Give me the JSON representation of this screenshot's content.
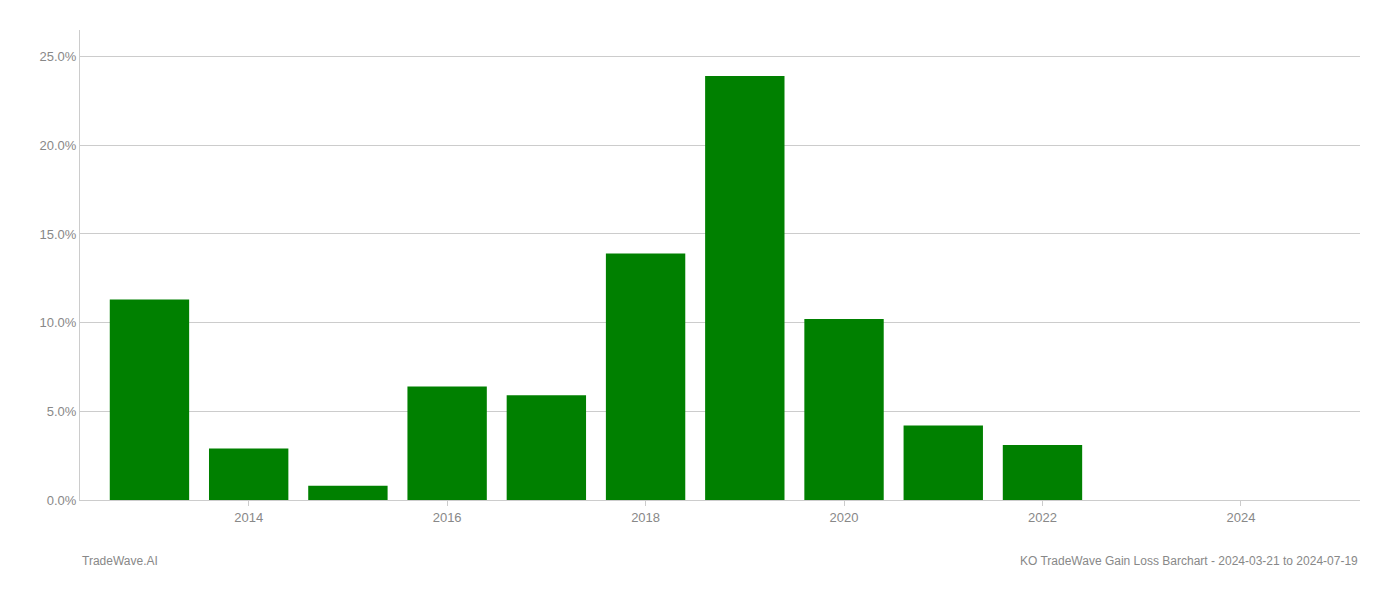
{
  "chart_data": {
    "type": "bar",
    "x": [
      2013,
      2014,
      2015,
      2016,
      2017,
      2018,
      2019,
      2020,
      2021,
      2022,
      2023
    ],
    "values": [
      0.113,
      0.029,
      0.008,
      0.064,
      0.059,
      0.139,
      0.239,
      0.102,
      0.042,
      0.031,
      0.0
    ],
    "color": "#008000",
    "xlim": [
      2012.3,
      2025.2
    ],
    "xticks": [
      2014,
      2016,
      2018,
      2020,
      2022,
      2024
    ],
    "ylim": [
      0.0,
      0.265
    ],
    "yticks": [
      {
        "value": 0.0,
        "label": "0.0%"
      },
      {
        "value": 0.05,
        "label": "5.0%"
      },
      {
        "value": 0.1,
        "label": "10.0%"
      },
      {
        "value": 0.15,
        "label": "15.0%"
      },
      {
        "value": 0.2,
        "label": "20.0%"
      },
      {
        "value": 0.25,
        "label": "25.0%"
      }
    ],
    "grid": true,
    "annotations": [
      "TradeWave.AI",
      "KO TradeWave Gain Loss Barchart - 2024-03-21 to 2024-07-19"
    ]
  }
}
